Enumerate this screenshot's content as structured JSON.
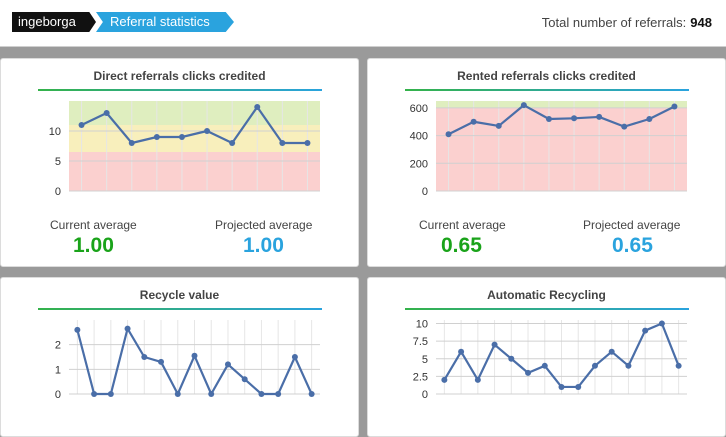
{
  "header": {
    "user": "ingeborga",
    "section": "Referral statistics",
    "total_label": "Total number of referrals:",
    "total_value": "948"
  },
  "colors": {
    "green": "#1aa31a",
    "blue": "#2aa3de",
    "line": "#4a6ea8",
    "zone_green": "#dfeebf",
    "zone_yellow": "#f8efbc",
    "zone_red": "#fbd0cf"
  },
  "panels": {
    "direct": {
      "title": "Direct referrals clicks credited",
      "current_label": "Current average",
      "current_value": "1.00",
      "projected_label": "Projected average",
      "projected_value": "1.00"
    },
    "rented": {
      "title": "Rented referrals clicks credited",
      "current_label": "Current average",
      "current_value": "0.65",
      "projected_label": "Projected average",
      "projected_value": "0.65"
    },
    "recycle": {
      "title": "Recycle value"
    },
    "auto": {
      "title": "Automatic Recycling"
    }
  },
  "chart_data": [
    {
      "id": "direct",
      "type": "line",
      "title": "Direct referrals clicks credited",
      "values": [
        11,
        13,
        8,
        9,
        9,
        10,
        8,
        14,
        8,
        8
      ],
      "ylim": [
        0,
        15
      ],
      "ticks": [
        "0",
        "5",
        "10"
      ],
      "tick_values": [
        0,
        5,
        10
      ],
      "zones": [
        {
          "from": 0,
          "to": 6.5,
          "color": "red"
        },
        {
          "from": 6.5,
          "to": 11,
          "color": "yellow"
        },
        {
          "from": 11,
          "to": 15,
          "color": "green"
        }
      ],
      "grid": true
    },
    {
      "id": "rented",
      "type": "line",
      "title": "Rented referrals clicks credited",
      "values": [
        410,
        500,
        470,
        620,
        520,
        525,
        535,
        465,
        520,
        610
      ],
      "ylim": [
        0,
        650
      ],
      "ticks": [
        "0",
        "200",
        "400",
        "600"
      ],
      "tick_values": [
        0,
        200,
        400,
        600
      ],
      "zones": [
        {
          "from": 0,
          "to": 600,
          "color": "red"
        },
        {
          "from": 600,
          "to": 650,
          "color": "green"
        }
      ],
      "grid": true
    },
    {
      "id": "recycle",
      "type": "line",
      "title": "Recycle value",
      "values": [
        2.6,
        0,
        0,
        2.65,
        1.5,
        1.3,
        0,
        1.55,
        0,
        1.2,
        0.6,
        0,
        0,
        1.5,
        0
      ],
      "ylim": [
        0,
        3
      ],
      "ticks": [
        "0",
        "1",
        "2"
      ],
      "tick_values": [
        0,
        1,
        2
      ],
      "zones": [],
      "grid": true
    },
    {
      "id": "auto",
      "type": "line",
      "title": "Automatic Recycling",
      "values": [
        2,
        6,
        2,
        7,
        5,
        3,
        4,
        1,
        1,
        4,
        6,
        4,
        9,
        10,
        4
      ],
      "ylim": [
        0,
        10.5
      ],
      "ticks": [
        "0",
        "2.5",
        "5",
        "7.5",
        "10"
      ],
      "tick_values": [
        0,
        2.5,
        5,
        7.5,
        10
      ],
      "zones": [],
      "grid": true
    }
  ]
}
